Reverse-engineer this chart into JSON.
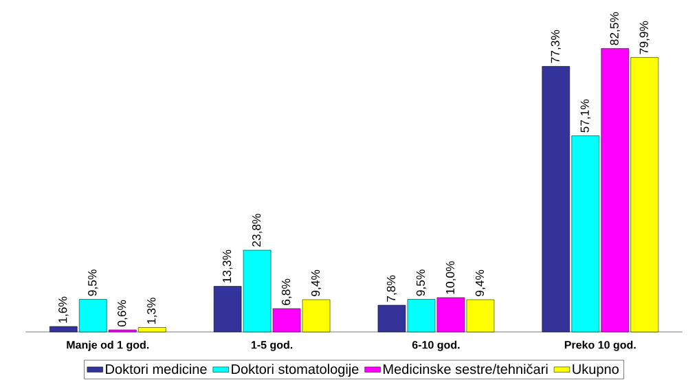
{
  "chart_data": {
    "type": "bar",
    "categories": [
      "Manje od 1 god.",
      "1-5 god.",
      "6-10 god.",
      "Preko 10 god."
    ],
    "series": [
      {
        "name": "Doktori medicine",
        "color": "#333399",
        "values": [
          1.6,
          13.3,
          7.8,
          77.3
        ],
        "value_labels": [
          "1,6%",
          "13,3%",
          "7,8%",
          "77,3%"
        ]
      },
      {
        "name": "Doktori stomatologije",
        "color": "#00ffff",
        "values": [
          9.5,
          23.8,
          9.5,
          57.1
        ],
        "value_labels": [
          "9,5%",
          "23,8%",
          "9,5%",
          "57,1%"
        ]
      },
      {
        "name": "Medicinske sestre/tehničari",
        "color": "#ff00ff",
        "values": [
          0.6,
          6.8,
          10.0,
          82.5
        ],
        "value_labels": [
          "0,6%",
          "6,8%",
          "10,0%",
          "82,5%"
        ]
      },
      {
        "name": "Ukupno",
        "color": "#ffff00",
        "values": [
          1.3,
          9.4,
          9.4,
          79.9
        ],
        "value_labels": [
          "1,3%",
          "9,4%",
          "9,4%",
          "79,9%"
        ]
      }
    ],
    "legend": "bottom"
  }
}
